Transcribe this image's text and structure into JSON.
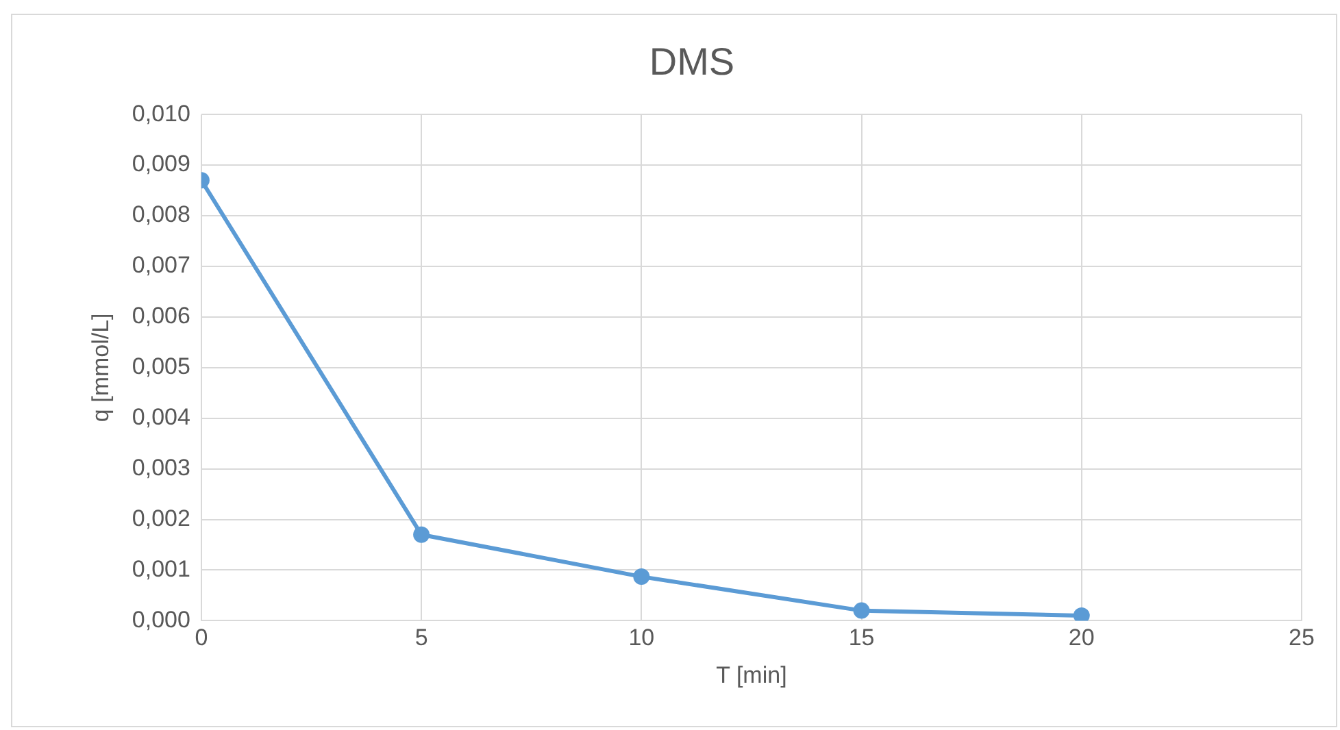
{
  "chart_data": {
    "type": "line",
    "title": "DMS",
    "xlabel": "T [min]",
    "ylabel": "q [mmol/L]",
    "x": [
      0,
      5,
      10,
      15,
      20
    ],
    "series": [
      {
        "color": "#5b9bd5",
        "values": [
          0.0087,
          0.0017,
          0.00087,
          0.0002,
          0.0001
        ]
      }
    ],
    "xlim": [
      0,
      25
    ],
    "xticks": [
      0,
      5,
      10,
      15,
      20,
      25
    ],
    "ylim": [
      0,
      0.01
    ],
    "yticks": [
      {
        "value": 0,
        "label": "0,000"
      },
      {
        "value": 0.001,
        "label": "0,001"
      },
      {
        "value": 0.002,
        "label": "0,002"
      },
      {
        "value": 0.003,
        "label": "0,003"
      },
      {
        "value": 0.004,
        "label": "0,004"
      },
      {
        "value": 0.005,
        "label": "0,005"
      },
      {
        "value": 0.006,
        "label": "0,006"
      },
      {
        "value": 0.007,
        "label": "0,007"
      },
      {
        "value": 0.008,
        "label": "0,008"
      },
      {
        "value": 0.009,
        "label": "0,009"
      },
      {
        "value": 0.01,
        "label": "0,010"
      }
    ],
    "grid": true,
    "marker": "circle",
    "line_style": "solid",
    "legend": false
  }
}
